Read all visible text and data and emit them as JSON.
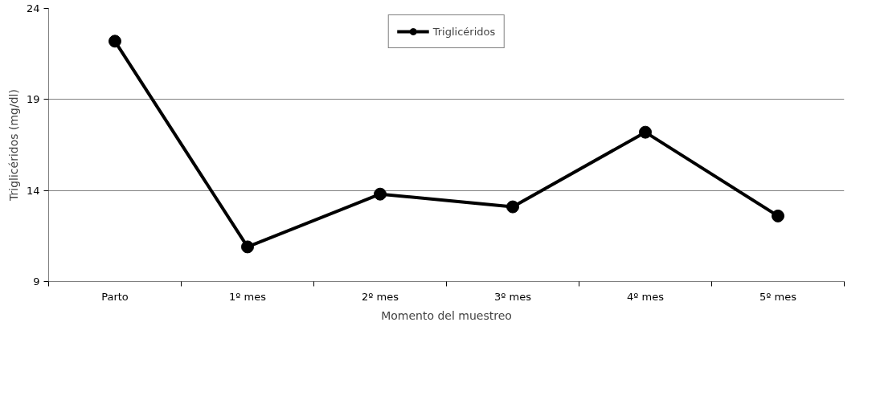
{
  "chart_data": {
    "type": "line",
    "xlabel": "Momento del muestreo",
    "ylabel": "Triglicéridos (mg/dl)",
    "categories": [
      "Parto",
      "1º mes",
      "2º mes",
      "3º mes",
      "4º mes",
      "5º mes"
    ],
    "series": [
      {
        "name": "Triglicéridos",
        "color": "#000000",
        "values": [
          22.2,
          10.9,
          13.8,
          13.1,
          17.2,
          12.6
        ]
      }
    ],
    "ylim": [
      9,
      24
    ],
    "yticks": [
      9,
      14,
      19,
      24
    ],
    "grid": "y",
    "legend": "top",
    "marker": "circle",
    "line_style": "solid"
  }
}
